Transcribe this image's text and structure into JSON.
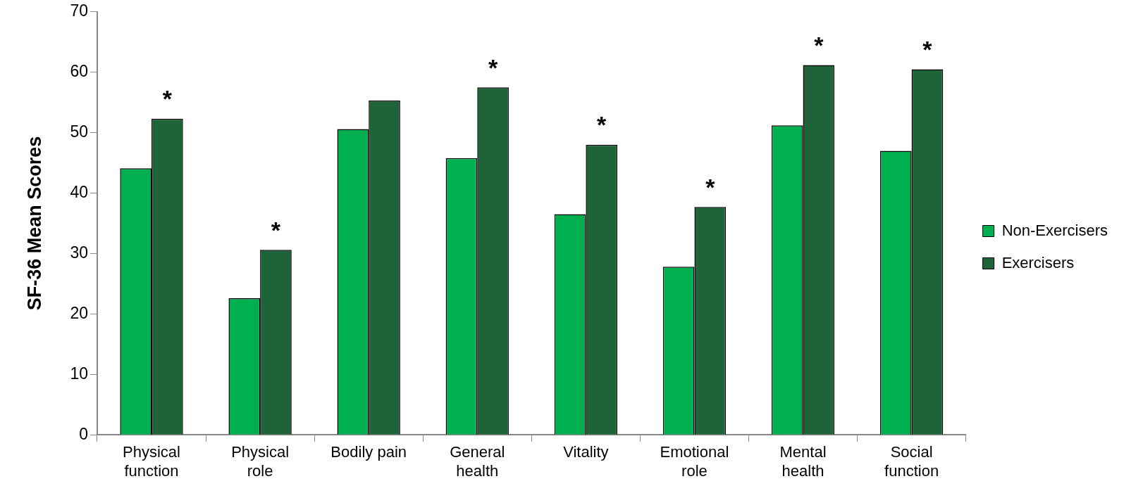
{
  "chart_data": {
    "type": "bar",
    "ylabel": "SF-36 Mean Scores",
    "categories": [
      "Physical function",
      "Physical role",
      "Bodily pain",
      "General health",
      "Vitality",
      "Emotional role",
      "Mental health",
      "Social function"
    ],
    "series": [
      {
        "name": "Non-Exercisers",
        "color": "#00b050",
        "values": [
          44.1,
          22.6,
          50.6,
          45.8,
          36.5,
          27.8,
          51.2,
          47.0
        ]
      },
      {
        "name": "Exercisers",
        "color": "#1f6439",
        "values": [
          52.3,
          30.6,
          55.3,
          57.5,
          48.0,
          37.7,
          61.2,
          60.5
        ]
      }
    ],
    "ylim": [
      0,
      70
    ],
    "yticks": [
      0,
      10,
      20,
      30,
      40,
      50,
      60,
      70
    ],
    "grid": false,
    "legend": "right",
    "annotations": [
      {
        "text": "*",
        "x": "Physical function",
        "y": 52.3
      },
      {
        "text": "*",
        "x": "Physical role",
        "y": 30.6
      },
      {
        "text": "*",
        "x": "General health",
        "y": 57.5
      },
      {
        "text": "*",
        "x": "Vitality",
        "y": 48.0
      },
      {
        "text": "*",
        "x": "Emotional role",
        "y": 37.7
      },
      {
        "text": "*",
        "x": "Mental health",
        "y": 61.2
      },
      {
        "text": "*",
        "x": "Social function",
        "y": 60.5
      }
    ]
  }
}
